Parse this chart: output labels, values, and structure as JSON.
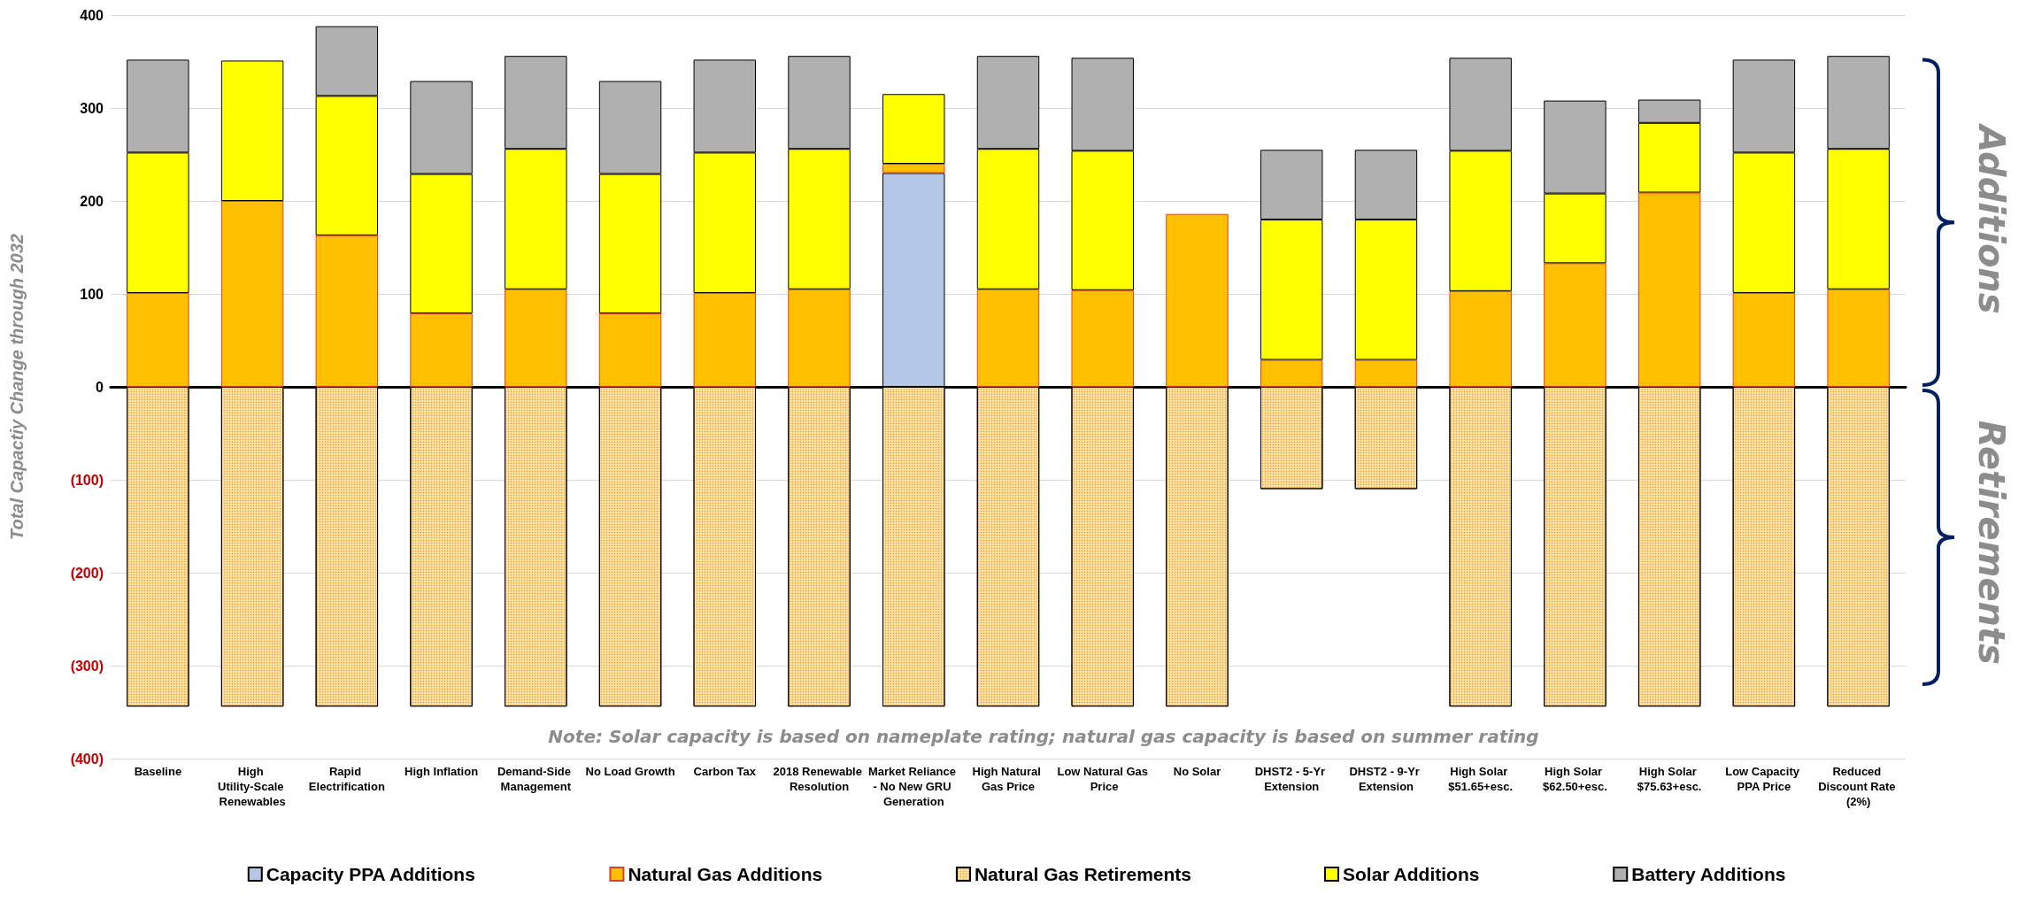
{
  "chart_data": {
    "type": "bar",
    "stacked": true,
    "ylabel": "Total Capactiy Change through 2032",
    "categories": [
      "Baseline",
      "High Utility-Scale Renewables",
      "Rapid Electrification",
      "High Inflation",
      "Demand-Side Management",
      "No Load Growth",
      "Carbon Tax",
      "2018 Renewable Resolution",
      "Market Reliance - No New GRU Generation",
      "High Natural Gas Price",
      "Low Natural Gas Price",
      "No Solar",
      "DHST2 - 5-Yr Extension",
      "DHST2 - 9-Yr Extension",
      "High Solar $51.65+esc.",
      "High Solar $62.50+esc.",
      "High Solar $75.63+esc.",
      "Low Capacity PPA Price",
      "Reduced Discount Rate (2%)"
    ],
    "series": [
      {
        "name": "Capacity PPA Additions",
        "color": "#b4c7e7",
        "values": [
          null,
          null,
          null,
          null,
          null,
          null,
          null,
          null,
          230,
          null,
          null,
          null,
          null,
          null,
          null,
          null,
          null,
          null,
          null
        ]
      },
      {
        "name": "Natural Gas Additions",
        "color": "#ffc000",
        "values": [
          101,
          200,
          163,
          79,
          105,
          79,
          101,
          105,
          10,
          105,
          104,
          186,
          29,
          29,
          103,
          133,
          209,
          101,
          105
        ]
      },
      {
        "name": "Natural Gas Retirements",
        "color": "#fde3a7",
        "values": [
          -344,
          -344,
          -344,
          -344,
          -344,
          -344,
          -344,
          -344,
          -344,
          -344,
          -344,
          -344,
          -110,
          -110,
          -344,
          -344,
          -344,
          -344,
          -344
        ]
      },
      {
        "name": "Solar Additions",
        "color": "#ffff00",
        "values": [
          151,
          151,
          150,
          150,
          151,
          150,
          151,
          151,
          75,
          151,
          150,
          null,
          151,
          151,
          151,
          75,
          75,
          151,
          151
        ]
      },
      {
        "name": "Battery Additions",
        "color": "#b0b0b0",
        "values": [
          100,
          null,
          75,
          100,
          100,
          100,
          100,
          100,
          null,
          100,
          100,
          null,
          75,
          75,
          100,
          100,
          25,
          100,
          100
        ]
      }
    ],
    "ylim": [
      -400,
      400
    ],
    "yticks": [
      {
        "value": -400,
        "label": "(400)"
      },
      {
        "value": -300,
        "label": "(300)"
      },
      {
        "value": -200,
        "label": "(200)"
      },
      {
        "value": -100,
        "label": "(100)"
      },
      0,
      100,
      200,
      300,
      400
    ],
    "grid": "y",
    "legend": "bottom",
    "annotations": [
      "Note: Solar capacity is based on nameplate rating; natural gas capacity is based on summer rating",
      "Additions",
      "Retirements"
    ]
  }
}
